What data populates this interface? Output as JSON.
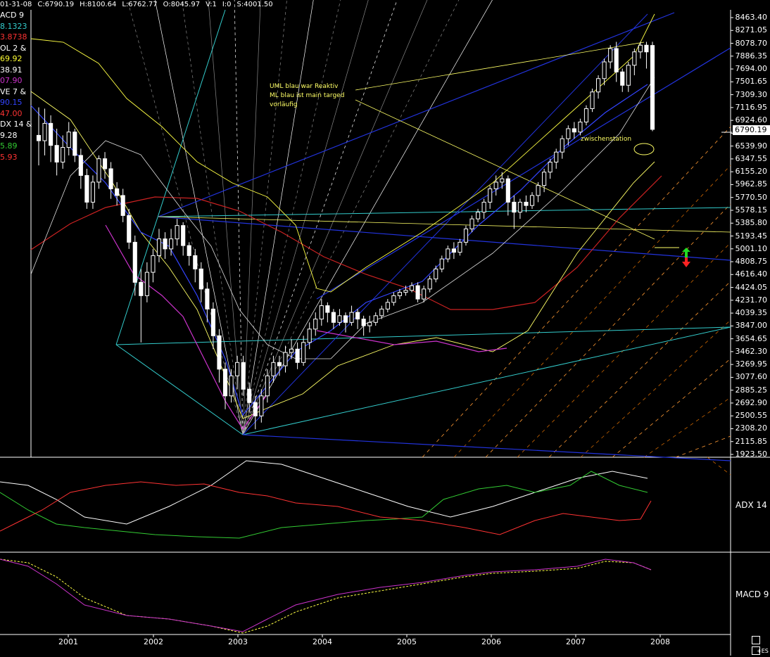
{
  "header": {
    "items": [
      "01-31-08",
      "C:6790.19",
      "H:8100.64",
      "L:6762.77",
      "O:8045.97",
      "V:1",
      "I:0",
      "S:4001.50"
    ]
  },
  "indicator_legend": [
    {
      "text": "ACD 9",
      "color": "#ffffff"
    },
    {
      "text": "8.1323",
      "color": "#33cccc"
    },
    {
      "text": "3.8738",
      "color": "#ff3333"
    },
    {
      "text": "OL 2 &",
      "color": "#ffffff"
    },
    {
      "text": "69.92",
      "color": "#ffff33"
    },
    {
      "text": "38.91",
      "color": "#ffffff"
    },
    {
      "text": "07.90",
      "color": "#cc33cc"
    },
    {
      "text": "VE 7 &",
      "color": "#ffffff"
    },
    {
      "text": "90.15",
      "color": "#3344ff"
    },
    {
      "text": "47.00",
      "color": "#ff3333"
    },
    {
      "text": "DX 14 &",
      "color": "#ffffff"
    },
    {
      "text": "9.28",
      "color": "#ffffff"
    },
    {
      "text": "5.89",
      "color": "#33cc33"
    },
    {
      "text": "5.93",
      "color": "#ff3333"
    }
  ],
  "annotations": {
    "note1": "UML blau war Reaktiv",
    "note2": "ML blau ist main targed",
    "note3": "vorläufig",
    "note4": "zwischenstation"
  },
  "current_price": "6790.19",
  "panes": {
    "adx_label": "ADX 14",
    "macd_label": "MACD 9"
  },
  "status": {
    "corner": "+ES"
  },
  "chart_data": {
    "type": "candlestick",
    "price_axis": {
      "ticks": [
        "8463.40",
        "8271.05",
        "8078.70",
        "7886.35",
        "7694.00",
        "7501.65",
        "7309.30",
        "7116.95",
        "6924.60",
        "6732.25",
        "6539.90",
        "6347.55",
        "6155.20",
        "5962.85",
        "5770.50",
        "5578.15",
        "5385.80",
        "5193.45",
        "5001.10",
        "4808.75",
        "4616.40",
        "4424.05",
        "4231.70",
        "4039.35",
        "3847.00",
        "3654.65",
        "3462.30",
        "3269.95",
        "3077.60",
        "2885.25",
        "2692.90",
        "2500.55",
        "2308.20",
        "2115.85",
        "1923.50"
      ],
      "range": [
        1923.5,
        8463.4
      ]
    },
    "x_axis": {
      "labels": [
        "2001",
        "2002",
        "2003",
        "2004",
        "2005",
        "2006",
        "2007",
        "2008"
      ]
    },
    "candles": [
      [
        6700,
        6620,
        7120,
        6250
      ],
      [
        6620,
        6880,
        7100,
        6400
      ],
      [
        6880,
        6550,
        7000,
        6300
      ],
      [
        6550,
        6300,
        6800,
        6100
      ],
      [
        6300,
        6520,
        6700,
        6200
      ],
      [
        6520,
        6750,
        6900,
        6400
      ],
      [
        6750,
        6400,
        6800,
        6300
      ],
      [
        6400,
        6100,
        6500,
        5900
      ],
      [
        6100,
        5700,
        6200,
        5600
      ],
      [
        5700,
        6000,
        6100,
        5600
      ],
      [
        6000,
        6350,
        6400,
        5900
      ],
      [
        6350,
        6200,
        6450,
        6050
      ],
      [
        6200,
        5900,
        6300,
        5750
      ],
      [
        5900,
        5800,
        6000,
        5650
      ],
      [
        5800,
        5500,
        5900,
        5400
      ],
      [
        5500,
        5100,
        5600,
        5000
      ],
      [
        5100,
        4500,
        5200,
        4300
      ],
      [
        4500,
        4300,
        4700,
        3600
      ],
      [
        4300,
        4650,
        4800,
        4200
      ],
      [
        4650,
        4900,
        5000,
        4500
      ],
      [
        4900,
        5150,
        5300,
        4800
      ],
      [
        5150,
        5000,
        5250,
        4850
      ],
      [
        5000,
        5150,
        5300,
        4900
      ],
      [
        5150,
        5350,
        5450,
        5050
      ],
      [
        5350,
        5050,
        5400,
        4900
      ],
      [
        5050,
        4900,
        5100,
        4750
      ],
      [
        4900,
        4700,
        5000,
        4500
      ],
      [
        4700,
        4400,
        4800,
        4200
      ],
      [
        4400,
        4100,
        4500,
        3900
      ],
      [
        4100,
        3700,
        4200,
        3500
      ],
      [
        3700,
        3200,
        3800,
        3000
      ],
      [
        3200,
        2800,
        3300,
        2600
      ],
      [
        2800,
        3100,
        3200,
        2700
      ],
      [
        3100,
        3300,
        3400,
        2900
      ],
      [
        3300,
        2900,
        3400,
        2800
      ],
      [
        2900,
        2700,
        3000,
        2550
      ],
      [
        2700,
        2500,
        2800,
        2300
      ],
      [
        2500,
        2800,
        2900,
        2400
      ],
      [
        2800,
        3100,
        3200,
        2700
      ],
      [
        3100,
        3300,
        3400,
        3000
      ],
      [
        3300,
        3250,
        3400,
        3100
      ],
      [
        3250,
        3450,
        3550,
        3150
      ],
      [
        3450,
        3500,
        3650,
        3350
      ],
      [
        3500,
        3300,
        3600,
        3200
      ],
      [
        3300,
        3600,
        3700,
        3250
      ],
      [
        3600,
        3800,
        3900,
        3500
      ],
      [
        3800,
        3950,
        4050,
        3700
      ],
      [
        3950,
        4150,
        4250,
        3850
      ],
      [
        4150,
        4050,
        4200,
        3900
      ],
      [
        4050,
        3900,
        4100,
        3800
      ],
      [
        3900,
        4000,
        4100,
        3850
      ],
      [
        4000,
        3900,
        4050,
        3750
      ],
      [
        3900,
        4050,
        4150,
        3850
      ],
      [
        4050,
        3950,
        4100,
        3800
      ],
      [
        3950,
        3850,
        4000,
        3700
      ],
      [
        3850,
        3900,
        4000,
        3750
      ],
      [
        3900,
        4000,
        4050,
        3850
      ],
      [
        4000,
        4100,
        4150,
        3950
      ],
      [
        4100,
        4200,
        4250,
        4050
      ],
      [
        4200,
        4300,
        4350,
        4150
      ],
      [
        4300,
        4350,
        4400,
        4250
      ],
      [
        4350,
        4380,
        4450,
        4300
      ],
      [
        4380,
        4450,
        4500,
        4350
      ],
      [
        4450,
        4250,
        4500,
        4200
      ],
      [
        4250,
        4400,
        4450,
        4200
      ],
      [
        4400,
        4550,
        4600,
        4350
      ],
      [
        4550,
        4700,
        4750,
        4500
      ],
      [
        4700,
        4850,
        4900,
        4650
      ],
      [
        4850,
        5000,
        5050,
        4800
      ],
      [
        5000,
        4950,
        5100,
        4850
      ],
      [
        4950,
        5100,
        5150,
        4900
      ],
      [
        5100,
        5300,
        5350,
        5050
      ],
      [
        5300,
        5450,
        5500,
        5250
      ],
      [
        5450,
        5550,
        5600,
        5400
      ],
      [
        5550,
        5700,
        5750,
        5450
      ],
      [
        5700,
        5900,
        5950,
        5600
      ],
      [
        5900,
        6000,
        6100,
        5800
      ],
      [
        6000,
        6050,
        6150,
        5900
      ],
      [
        6050,
        5700,
        6100,
        5500
      ],
      [
        5700,
        5550,
        5800,
        5300
      ],
      [
        5550,
        5700,
        5750,
        5450
      ],
      [
        5700,
        5650,
        5800,
        5550
      ],
      [
        5650,
        5800,
        5850,
        5600
      ],
      [
        5800,
        5950,
        6000,
        5700
      ],
      [
        5950,
        6150,
        6200,
        5850
      ],
      [
        6150,
        6300,
        6350,
        6050
      ],
      [
        6300,
        6450,
        6500,
        6200
      ],
      [
        6450,
        6650,
        6700,
        6350
      ],
      [
        6650,
        6800,
        6850,
        6550
      ],
      [
        6800,
        6750,
        6900,
        6650
      ],
      [
        6750,
        6900,
        6950,
        6700
      ],
      [
        6900,
        7100,
        7150,
        6850
      ],
      [
        7100,
        7350,
        7400,
        7050
      ],
      [
        7350,
        7550,
        7600,
        7250
      ],
      [
        7550,
        7800,
        7850,
        7450
      ],
      [
        7800,
        8000,
        8050,
        7700
      ],
      [
        8000,
        7650,
        8100,
        7500
      ],
      [
        7650,
        7450,
        7700,
        7350
      ],
      [
        7450,
        7750,
        7800,
        7350
      ],
      [
        7750,
        7950,
        8000,
        7600
      ],
      [
        7950,
        8050,
        8100,
        7850
      ],
      [
        8050,
        7950,
        8100,
        7700
      ],
      [
        8046,
        6790,
        8101,
        6763
      ]
    ],
    "adx": {
      "labels": [
        "ADX",
        "+DI",
        "-DI"
      ],
      "values": [
        29.28,
        25.89,
        35.93
      ]
    },
    "macd": {
      "series": [
        "MACD",
        "Signal"
      ]
    }
  }
}
